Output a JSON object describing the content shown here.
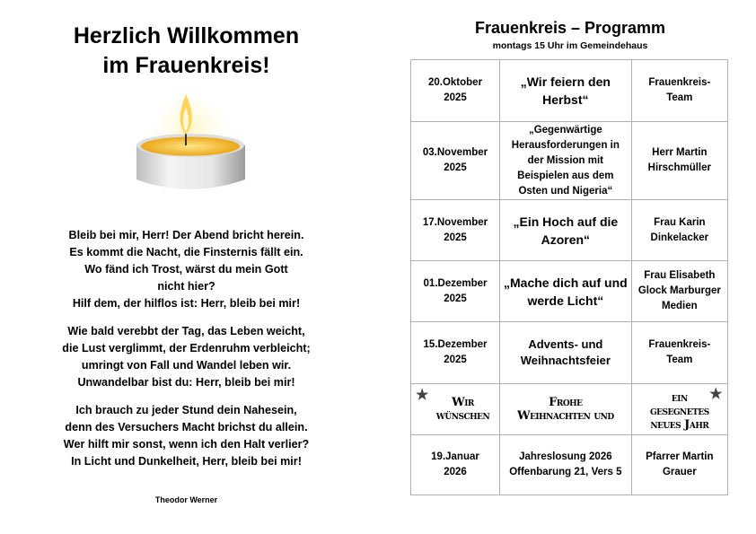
{
  "left": {
    "title_lines": [
      "Herzlich Willkommen",
      "im Frauenkreis!"
    ],
    "image": "tealight-candle",
    "stanzas": [
      [
        "Bleib bei mir, Herr! Der Abend bricht herein.",
        "Es kommt die Nacht, die Finsternis fällt ein.",
        "Wo fänd ich Trost, wärst du mein Gott nicht hier?",
        "Hilf dem, der hilflos ist: Herr, bleib bei mir!"
      ],
      [
        "Wie bald verebbt der Tag, das Leben weicht,",
        "die Lust verglimmt, der Erdenruhm verbleicht;",
        "umringt von Fall und Wandel leben wir.",
        "Unwandelbar bist du: Herr, bleib bei mir!"
      ],
      [
        "Ich brauch zu jeder Stund dein Nahesein,",
        "denn des Versuchers Macht brichst du allein.",
        "Wer hilft mir sonst, wenn ich den Halt verlier?",
        "In Licht und Dunkelheit, Herr, bleib bei mir!"
      ]
    ],
    "author": "Theodor Werner"
  },
  "right": {
    "title": "Frauenkreis – Programm",
    "subtitle": "montags 15 Uhr im Gemeindehaus",
    "rows": [
      {
        "date": "20.Oktober 2025",
        "topic": "„Wir feiern den Herbst“",
        "speaker": "Frauenkreis-Team",
        "big": true
      },
      {
        "date": "03.November 2025",
        "topic": "„Gegenwärtige Herausforderungen in der Mission mit Beispielen aus dem Osten und Nigeria“",
        "speaker": "Herr Martin Hirschmüller"
      },
      {
        "date": "17.November 2025",
        "topic": "„Ein Hoch auf die Azoren“",
        "speaker": "Frau Karin Dinkelacker",
        "big": true
      },
      {
        "date": "01.Dezember 2025",
        "topic": "„Mache dich auf und werde Licht“",
        "speaker": "Frau Elisabeth Glock Marburger Medien",
        "big": true
      },
      {
        "date": "15.Dezember 2025",
        "topic": "Advents- und Weihnachtsfeier",
        "speaker": "Frauenkreis-Team"
      },
      {
        "date": "Wir wünschen",
        "topic": "Frohe Weihnachten und",
        "speaker": "ein gesegnetes neues Jahr",
        "greeting": true
      },
      {
        "date": "19.Januar 2026",
        "topic": "Jahreslosung 2026 Offenbarung 21, Vers 5",
        "speaker": "Pfarrer Martin Grauer"
      }
    ]
  }
}
